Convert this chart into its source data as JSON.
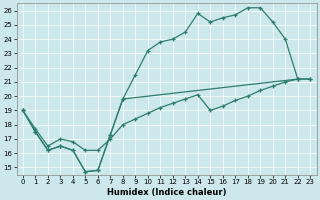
{
  "xlabel": "Humidex (Indice chaleur)",
  "xlim": [
    -0.5,
    23.5
  ],
  "ylim": [
    14.5,
    26.5
  ],
  "xticks": [
    0,
    1,
    2,
    3,
    4,
    5,
    6,
    7,
    8,
    9,
    10,
    11,
    12,
    13,
    14,
    15,
    16,
    17,
    18,
    19,
    20,
    21,
    22,
    23
  ],
  "yticks": [
    15,
    16,
    17,
    18,
    19,
    20,
    21,
    22,
    23,
    24,
    25,
    26
  ],
  "bg_color": "#cce8ec",
  "line_color": "#2e7d6e",
  "curve1_x": [
    0,
    1,
    2,
    3,
    4,
    5,
    6,
    7,
    8,
    9,
    10,
    11,
    12,
    13,
    14,
    15,
    16,
    17,
    18,
    19,
    20,
    21,
    22
  ],
  "curve1_y": [
    19.0,
    17.5,
    16.2,
    16.5,
    16.2,
    14.7,
    14.8,
    17.3,
    19.8,
    21.5,
    23.2,
    23.8,
    24.0,
    24.5,
    25.8,
    25.2,
    25.5,
    25.7,
    26.2,
    26.2,
    25.2,
    24.0,
    21.2
  ],
  "curve2_x": [
    0,
    1,
    2,
    3,
    4,
    5,
    6,
    7,
    8,
    9,
    10,
    11,
    12,
    13,
    14,
    15,
    16,
    17,
    18,
    19,
    20,
    21,
    22,
    23
  ],
  "curve2_y": [
    19.0,
    17.7,
    16.5,
    17.0,
    16.8,
    16.2,
    16.2,
    17.0,
    18.0,
    18.4,
    18.8,
    19.2,
    19.5,
    19.8,
    20.1,
    19.0,
    19.3,
    19.7,
    20.0,
    20.4,
    20.7,
    21.0,
    21.2,
    21.2
  ],
  "curve3_x": [
    0,
    1,
    2,
    3,
    4,
    5,
    6,
    7,
    8,
    22,
    23
  ],
  "curve3_y": [
    19.0,
    17.5,
    16.2,
    16.5,
    16.2,
    14.7,
    14.8,
    17.3,
    19.8,
    21.2,
    21.2
  ]
}
